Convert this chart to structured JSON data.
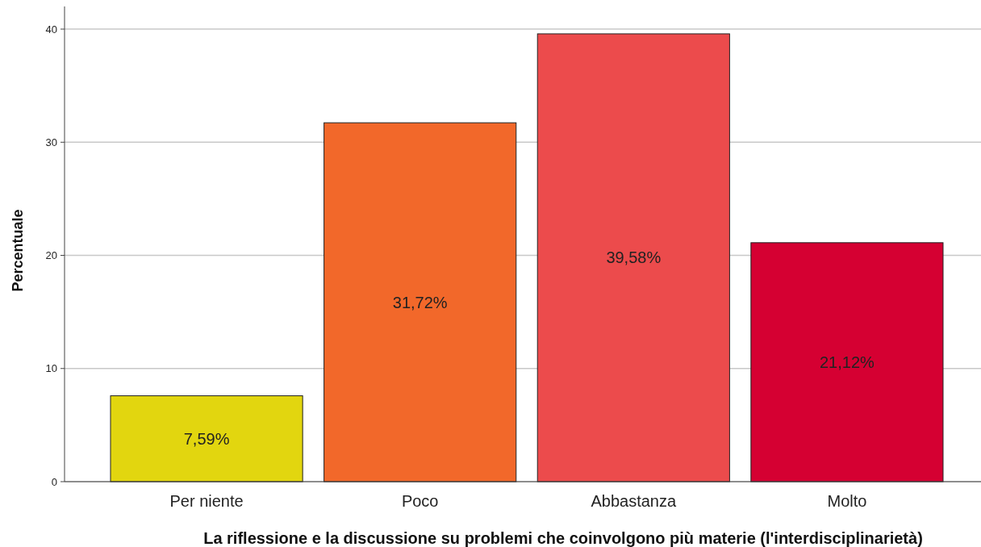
{
  "chart_data": {
    "type": "bar",
    "xlabel": "La riflessione e la discussione su problemi che coinvolgono più materie (l'interdisciplinarietà)",
    "ylabel": "Percentuale",
    "categories": [
      "Per niente",
      "Poco",
      "Abbastanza",
      "Molto"
    ],
    "values": [
      7.59,
      31.72,
      39.58,
      21.12
    ],
    "colors": [
      "#e2d60f",
      "#f2682a",
      "#ec4b4c",
      "#d50032"
    ],
    "value_labels": [
      "7,59%",
      "31,72%",
      "39,58%",
      "21,12%"
    ],
    "ylim": [
      0,
      42
    ],
    "yticks": [
      0,
      10,
      20,
      30,
      40
    ],
    "grid": "y"
  }
}
